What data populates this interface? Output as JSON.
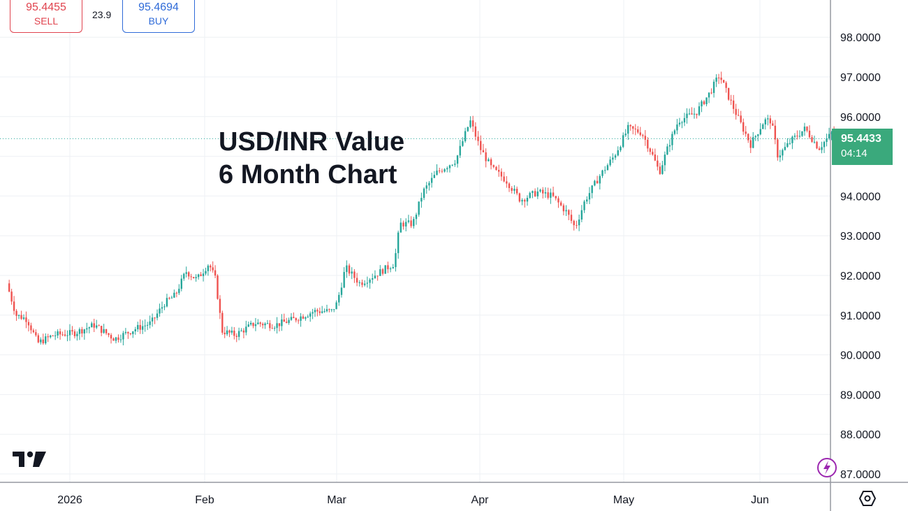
{
  "chart_data": {
    "type": "candlestick",
    "title": "USD/INR Value",
    "subtitle": "6 Month Chart",
    "x_labels": [
      "2026",
      "Feb",
      "Mar",
      "Apr",
      "May",
      "Jun"
    ],
    "y_ticks": [
      "87.0000",
      "88.0000",
      "89.0000",
      "90.0000",
      "91.0000",
      "92.0000",
      "93.0000",
      "94.0000",
      "95.0000",
      "96.0000",
      "97.0000",
      "98.0000"
    ],
    "ylim": [
      86.85,
      99.2
    ],
    "grid": true,
    "x_unit": "months since Dec 2025 start",
    "key_points": [
      {
        "t": 0.55,
        "v": 91.8
      },
      {
        "t": 0.62,
        "v": 91.0
      },
      {
        "t": 0.7,
        "v": 90.9
      },
      {
        "t": 0.78,
        "v": 90.3
      },
      {
        "t": 0.9,
        "v": 90.5
      },
      {
        "t": 1.05,
        "v": 90.55
      },
      {
        "t": 1.2,
        "v": 90.75
      },
      {
        "t": 1.35,
        "v": 90.4
      },
      {
        "t": 1.5,
        "v": 90.65
      },
      {
        "t": 1.62,
        "v": 90.8
      },
      {
        "t": 1.72,
        "v": 91.3
      },
      {
        "t": 1.8,
        "v": 91.5
      },
      {
        "t": 1.88,
        "v": 92.1
      },
      {
        "t": 1.96,
        "v": 91.9
      },
      {
        "t": 2.05,
        "v": 92.3
      },
      {
        "t": 2.1,
        "v": 91.9
      },
      {
        "t": 2.15,
        "v": 90.6
      },
      {
        "t": 2.25,
        "v": 90.5
      },
      {
        "t": 2.4,
        "v": 90.8
      },
      {
        "t": 2.55,
        "v": 90.75
      },
      {
        "t": 2.7,
        "v": 90.9
      },
      {
        "t": 2.85,
        "v": 91.1
      },
      {
        "t": 2.98,
        "v": 91.1
      },
      {
        "t": 3.02,
        "v": 91.3
      },
      {
        "t": 3.08,
        "v": 92.2
      },
      {
        "t": 3.18,
        "v": 91.8
      },
      {
        "t": 3.28,
        "v": 92.0
      },
      {
        "t": 3.42,
        "v": 92.3
      },
      {
        "t": 3.46,
        "v": 93.3
      },
      {
        "t": 3.55,
        "v": 93.3
      },
      {
        "t": 3.62,
        "v": 94.1
      },
      {
        "t": 3.72,
        "v": 94.6
      },
      {
        "t": 3.85,
        "v": 94.9
      },
      {
        "t": 3.95,
        "v": 95.9
      },
      {
        "t": 4.02,
        "v": 95.2
      },
      {
        "t": 4.1,
        "v": 94.7
      },
      {
        "t": 4.2,
        "v": 94.4
      },
      {
        "t": 4.3,
        "v": 93.9
      },
      {
        "t": 4.42,
        "v": 94.1
      },
      {
        "t": 4.52,
        "v": 94.0
      },
      {
        "t": 4.62,
        "v": 93.6
      },
      {
        "t": 4.68,
        "v": 93.2
      },
      {
        "t": 4.75,
        "v": 93.9
      },
      {
        "t": 4.85,
        "v": 94.5
      },
      {
        "t": 4.95,
        "v": 95.0
      },
      {
        "t": 5.05,
        "v": 95.7
      },
      {
        "t": 5.15,
        "v": 95.6
      },
      {
        "t": 5.22,
        "v": 95.1
      },
      {
        "t": 5.28,
        "v": 94.6
      },
      {
        "t": 5.35,
        "v": 95.3
      },
      {
        "t": 5.42,
        "v": 95.9
      },
      {
        "t": 5.55,
        "v": 96.1
      },
      {
        "t": 5.65,
        "v": 96.6
      },
      {
        "t": 5.72,
        "v": 97.05
      },
      {
        "t": 5.8,
        "v": 96.4
      },
      {
        "t": 5.88,
        "v": 95.8
      },
      {
        "t": 5.95,
        "v": 95.3
      },
      {
        "t": 6.05,
        "v": 95.9
      },
      {
        "t": 6.1,
        "v": 95.9
      },
      {
        "t": 6.15,
        "v": 95.0
      },
      {
        "t": 6.25,
        "v": 95.4
      },
      {
        "t": 6.35,
        "v": 95.7
      },
      {
        "t": 6.45,
        "v": 95.2
      },
      {
        "t": 6.55,
        "v": 95.6
      },
      {
        "t": 6.62,
        "v": 95.2
      },
      {
        "t": 6.72,
        "v": 95.44
      }
    ]
  },
  "quote": {
    "sell_price": "95.4455",
    "sell_label": "SELL",
    "buy_price": "95.4694",
    "buy_label": "BUY",
    "spread": "23.9",
    "current_price": "95.4433",
    "countdown": "04:14"
  },
  "colors": {
    "up": "#26a69a",
    "down": "#ef5350",
    "sell": "#e0434e",
    "buy": "#2f6bd8",
    "price_tag": "#3aa97c"
  },
  "icons": {
    "logo": "tradingview-logo",
    "settings": "settings-icon",
    "bolt": "lightning-icon"
  }
}
